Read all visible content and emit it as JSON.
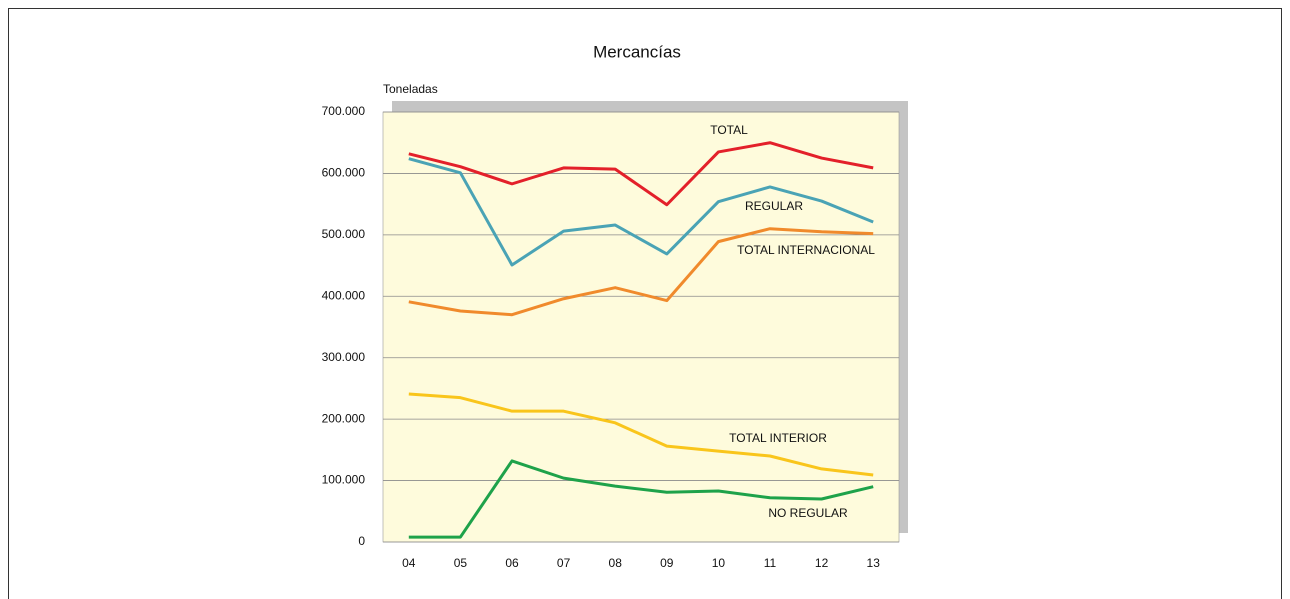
{
  "chart_data": {
    "type": "line",
    "title": "Mercancías",
    "y_label": "Toneladas",
    "categories": [
      "04",
      "05",
      "06",
      "07",
      "08",
      "09",
      "10",
      "11",
      "12",
      "13"
    ],
    "series": [
      {
        "name": "TOTAL",
        "color": "#e3202a",
        "values": [
          632000,
          611000,
          583000,
          609000,
          607000,
          549000,
          635000,
          650000,
          625000,
          609000
        ]
      },
      {
        "name": "REGULAR",
        "color": "#4aa3b5",
        "values": [
          624000,
          601000,
          451000,
          506000,
          516000,
          469000,
          554000,
          578000,
          555000,
          521000
        ]
      },
      {
        "name": "TOTAL INTERNACIONAL",
        "color": "#f08a2c",
        "values": [
          391000,
          376000,
          370000,
          396000,
          414000,
          393000,
          489000,
          510000,
          505000,
          502000
        ]
      },
      {
        "name": "TOTAL INTERIOR",
        "color": "#f9c51b",
        "values": [
          241000,
          235000,
          213000,
          213000,
          194000,
          156000,
          148000,
          140000,
          119000,
          109000
        ]
      },
      {
        "name": "NO REGULAR",
        "color": "#1ea24a",
        "values": [
          8000,
          8000,
          132000,
          104000,
          91000,
          81000,
          83000,
          72000,
          70000,
          90000
        ]
      }
    ],
    "ylim": [
      0,
      700000
    ],
    "yticks": [
      0,
      {
        "value": 100000,
        "label": "100.000"
      },
      {
        "value": 200000,
        "label": "200.000"
      },
      {
        "value": 300000,
        "label": "300.000"
      },
      {
        "value": 400000,
        "label": "400.000"
      },
      {
        "value": 500000,
        "label": "500.000"
      },
      {
        "value": 600000,
        "label": "600.000"
      },
      {
        "value": 700000,
        "label": "700.000"
      }
    ],
    "grid": true
  }
}
